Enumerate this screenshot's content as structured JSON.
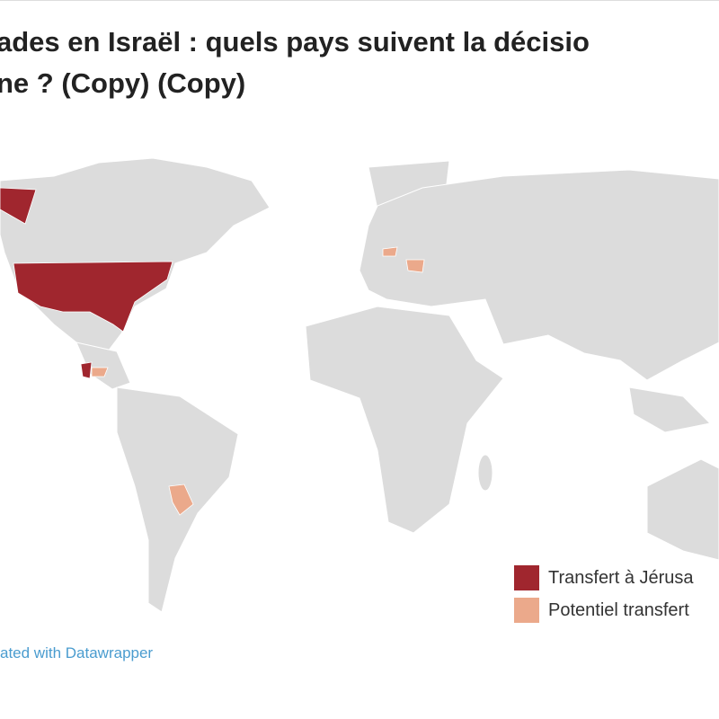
{
  "header": {
    "title_lines": [
      "ades en Israël : quels pays suivent la décisio",
      "ne ? (Copy) (Copy)"
    ]
  },
  "legend": [
    {
      "label": "Transfert à Jérusa",
      "color": "#a0262e"
    },
    {
      "label": "Potentiel transfert",
      "color": "#eba98b"
    }
  ],
  "footer": "ated with Datawrapper"
}
